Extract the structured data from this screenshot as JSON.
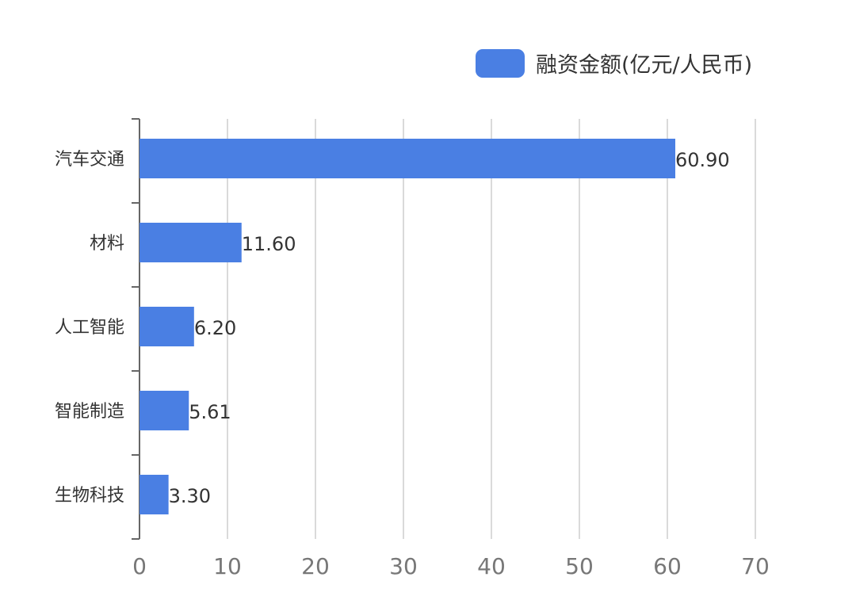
{
  "colors": {
    "bar": "#4A7FE3",
    "axis": "#666666",
    "grid": "#DADADA",
    "text": "#333333",
    "tick_text": "#777777"
  },
  "legend": {
    "label": "融资金额(亿元/人民币)"
  },
  "chart_data": {
    "type": "bar",
    "orientation": "horizontal",
    "categories": [
      "汽车交通",
      "材料",
      "人工智能",
      "智能制造",
      "生物科技"
    ],
    "series": [
      {
        "name": "融资金额(亿元/人民币)",
        "values": [
          60.9,
          11.6,
          6.2,
          5.61,
          3.3
        ]
      }
    ],
    "data_labels": [
      "60.90",
      "11.60",
      "6.20",
      "5.61",
      "3.30"
    ],
    "xlim": [
      0,
      70
    ],
    "xticks": [
      "0",
      "10",
      "20",
      "30",
      "40",
      "50",
      "60",
      "70"
    ],
    "grid": true,
    "legend_position": "top-right",
    "title": "",
    "xlabel": "",
    "ylabel": ""
  }
}
